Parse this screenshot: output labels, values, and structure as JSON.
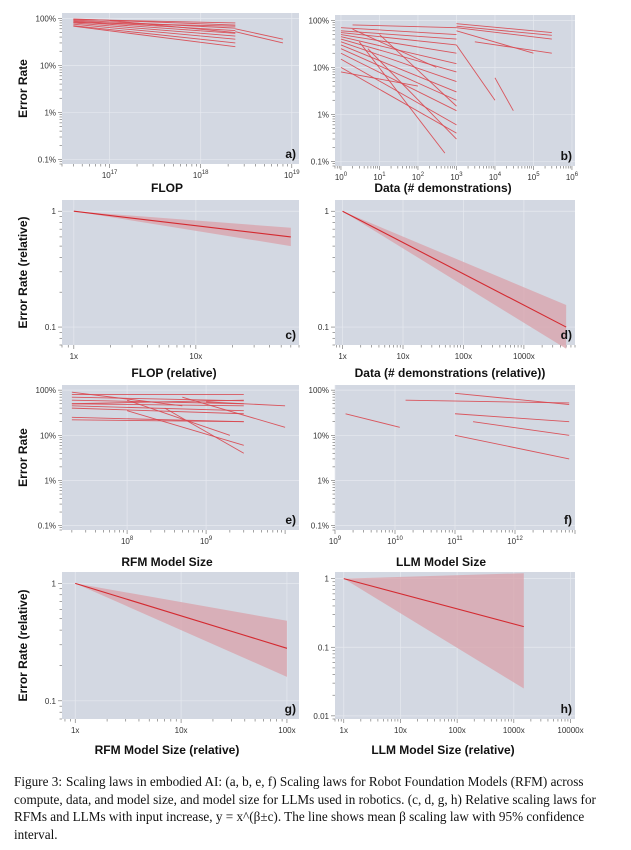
{
  "figure": {
    "caption": {
      "label": "Figure 3:",
      "text": "Scaling laws in embodied AI: (a, b, e, f) Scaling laws for Robot Foundation Models (RFM) across compute, data, and model size, and model size for LLMs used in robotics. (c, d, g, h) Relative scaling laws for RFMs and LLMs with input increase, y = x^(β±c). The line shows mean β scaling law with 95% confidence interval."
    },
    "y_axis_labels": {
      "abs": "Error Rate",
      "rel": "Error Rate (relative)"
    },
    "colors": {
      "panel_bg": "#d3d8e2",
      "line": "#d9474f",
      "band": "#d9a2aa"
    }
  },
  "chart_data": [
    {
      "id": "a",
      "type": "line",
      "panel_label": "a)",
      "xlabel": "FLOP",
      "ylabel": "Error Rate",
      "xscale": "log",
      "yscale": "log",
      "xlim": [
        3e+16,
        1.2e+19
      ],
      "ylim": [
        0.0008,
        1.3
      ],
      "xticks": [
        {
          "v": 1e+17,
          "base": "10",
          "exp": "17"
        },
        {
          "v": 1e+18,
          "base": "10",
          "exp": "18"
        },
        {
          "v": 1e+19,
          "base": "10",
          "exp": "19"
        }
      ],
      "yticks": [
        {
          "v": 1,
          "t": "100%"
        },
        {
          "v": 0.1,
          "t": "10%"
        },
        {
          "v": 0.01,
          "t": "1%"
        },
        {
          "v": 0.001,
          "t": "0.1%"
        }
      ],
      "series": [
        {
          "x": [
            4e+16,
            2.4e+18
          ],
          "y": [
            0.97,
            0.72
          ]
        },
        {
          "x": [
            4e+16,
            2.4e+18
          ],
          "y": [
            0.92,
            0.62
          ]
        },
        {
          "x": [
            4e+16,
            2.4e+18
          ],
          "y": [
            0.88,
            0.55
          ]
        },
        {
          "x": [
            4e+16,
            2.4e+18
          ],
          "y": [
            0.85,
            0.48
          ]
        },
        {
          "x": [
            4e+16,
            2.4e+18
          ],
          "y": [
            0.8,
            0.42
          ]
        },
        {
          "x": [
            4e+16,
            2.4e+18
          ],
          "y": [
            0.75,
            0.36
          ]
        },
        {
          "x": [
            4e+16,
            2.4e+18
          ],
          "y": [
            0.7,
            0.3
          ]
        },
        {
          "x": [
            4e+16,
            2.4e+18
          ],
          "y": [
            0.95,
            0.8
          ]
        },
        {
          "x": [
            4e+16,
            2.4e+18
          ],
          "y": [
            0.82,
            0.68
          ]
        },
        {
          "x": [
            4e+16,
            2.4e+18
          ],
          "y": [
            0.68,
            0.25
          ]
        },
        {
          "x": [
            2.4e+18,
            8e+18
          ],
          "y": [
            0.6,
            0.36
          ]
        },
        {
          "x": [
            2.4e+18,
            8e+18
          ],
          "y": [
            0.52,
            0.3
          ]
        },
        {
          "x": [
            1e+17,
            2.4e+18
          ],
          "y": [
            0.9,
            0.5
          ]
        }
      ]
    },
    {
      "id": "b",
      "type": "line",
      "panel_label": "b)",
      "xlabel": "Data (# demonstrations)",
      "ylabel": "",
      "xscale": "log",
      "yscale": "log",
      "xlim": [
        0.7,
        1200000.0
      ],
      "ylim": [
        0.0008,
        1.3
      ],
      "xticks": [
        {
          "v": 1,
          "base": "10",
          "exp": "0"
        },
        {
          "v": 10,
          "base": "10",
          "exp": "1"
        },
        {
          "v": 100,
          "base": "10",
          "exp": "2"
        },
        {
          "v": 1000,
          "base": "10",
          "exp": "3"
        },
        {
          "v": 10000,
          "base": "10",
          "exp": "4"
        },
        {
          "v": 100000,
          "base": "10",
          "exp": "5"
        },
        {
          "v": 1000000,
          "base": "10",
          "exp": "6"
        }
      ],
      "yticks": [
        {
          "v": 1,
          "t": "100%"
        },
        {
          "v": 0.1,
          "t": "10%"
        },
        {
          "v": 0.01,
          "t": "1%"
        },
        {
          "v": 0.001,
          "t": "0.1%"
        }
      ],
      "series": [
        {
          "x": [
            1,
            1000
          ],
          "y": [
            0.7,
            0.5
          ]
        },
        {
          "x": [
            1,
            1000
          ],
          "y": [
            0.6,
            0.4
          ]
        },
        {
          "x": [
            1,
            1000
          ],
          "y": [
            0.55,
            0.3
          ]
        },
        {
          "x": [
            1,
            1000
          ],
          "y": [
            0.5,
            0.2
          ]
        },
        {
          "x": [
            1,
            1000
          ],
          "y": [
            0.45,
            0.12
          ]
        },
        {
          "x": [
            1,
            1000
          ],
          "y": [
            0.4,
            0.08
          ]
        },
        {
          "x": [
            1,
            1000
          ],
          "y": [
            0.35,
            0.05
          ]
        },
        {
          "x": [
            1,
            1000
          ],
          "y": [
            0.3,
            0.03
          ]
        },
        {
          "x": [
            1,
            1000
          ],
          "y": [
            0.25,
            0.02
          ]
        },
        {
          "x": [
            1,
            1000
          ],
          "y": [
            0.2,
            0.012
          ]
        },
        {
          "x": [
            1,
            1000
          ],
          "y": [
            0.15,
            0.006
          ]
        },
        {
          "x": [
            1,
            1000
          ],
          "y": [
            0.1,
            0.004
          ]
        },
        {
          "x": [
            2,
            1000
          ],
          "y": [
            0.8,
            0.7
          ]
        },
        {
          "x": [
            2,
            300
          ],
          "y": [
            0.65,
            0.1
          ]
        },
        {
          "x": [
            3,
            500
          ],
          "y": [
            0.35,
            0.0015
          ]
        },
        {
          "x": [
            5,
            1000
          ],
          "y": [
            0.25,
            0.003
          ]
        },
        {
          "x": [
            10,
            1000
          ],
          "y": [
            0.5,
            0.015
          ]
        },
        {
          "x": [
            1,
            100
          ],
          "y": [
            0.08,
            0.04
          ]
        },
        {
          "x": [
            1000,
            300000
          ],
          "y": [
            0.85,
            0.55
          ]
        },
        {
          "x": [
            1000,
            300000
          ],
          "y": [
            0.75,
            0.48
          ]
        },
        {
          "x": [
            1000,
            300000
          ],
          "y": [
            0.7,
            0.4
          ]
        },
        {
          "x": [
            1000,
            100000
          ],
          "y": [
            0.6,
            0.2
          ]
        },
        {
          "x": [
            3000,
            300000
          ],
          "y": [
            0.35,
            0.2
          ]
        },
        {
          "x": [
            10000,
            30000
          ],
          "y": [
            0.06,
            0.012
          ]
        },
        {
          "x": [
            1000,
            10000
          ],
          "y": [
            0.3,
            0.02
          ]
        }
      ]
    },
    {
      "id": "c",
      "type": "line",
      "panel_label": "c)",
      "xlabel": "FLOP (relative)",
      "ylabel": "Error Rate (relative)",
      "xscale": "log",
      "yscale": "log",
      "xlim": [
        0.8,
        70
      ],
      "ylim": [
        0.07,
        1.25
      ],
      "xticks": [
        {
          "v": 1,
          "t": "1x"
        },
        {
          "v": 10,
          "t": "10x"
        }
      ],
      "yticks": [
        {
          "v": 1,
          "t": "1"
        },
        {
          "v": 0.1,
          "t": "0.1"
        }
      ],
      "mean": {
        "x": [
          1,
          60
        ],
        "y": [
          1,
          0.6
        ]
      },
      "band": {
        "x": [
          1,
          60
        ],
        "lo": [
          1,
          0.5
        ],
        "hi": [
          1,
          0.72
        ]
      }
    },
    {
      "id": "d",
      "type": "line",
      "panel_label": "d)",
      "xlabel": "Data (# demonstrations (relative))",
      "ylabel": "",
      "xscale": "log",
      "yscale": "log",
      "xlim": [
        0.75,
        7000
      ],
      "ylim": [
        0.07,
        1.25
      ],
      "xticks": [
        {
          "v": 1,
          "t": "1x"
        },
        {
          "v": 10,
          "t": "10x"
        },
        {
          "v": 100,
          "t": "100x"
        },
        {
          "v": 1000,
          "t": "1000x"
        }
      ],
      "yticks": [
        {
          "v": 1,
          "t": "1"
        },
        {
          "v": 0.1,
          "t": "0.1"
        }
      ],
      "mean": {
        "x": [
          1,
          5000
        ],
        "y": [
          1,
          0.1
        ]
      },
      "band": {
        "x": [
          1,
          5000
        ],
        "lo": [
          1,
          0.065
        ],
        "hi": [
          1,
          0.155
        ]
      }
    },
    {
      "id": "e",
      "type": "line",
      "panel_label": "e)",
      "xlabel": "RFM Model Size",
      "ylabel": "Error Rate",
      "xscale": "log",
      "yscale": "log",
      "xlim": [
        15000000.0,
        15000000000.0
      ],
      "ylim": [
        0.0008,
        1.3
      ],
      "xticks": [
        {
          "v": 100000000.0,
          "base": "10",
          "exp": "8"
        },
        {
          "v": 1000000000.0,
          "base": "10",
          "exp": "9"
        }
      ],
      "yticks": [
        {
          "v": 1,
          "t": "100%"
        },
        {
          "v": 0.1,
          "t": "10%"
        },
        {
          "v": 0.01,
          "t": "1%"
        },
        {
          "v": 0.001,
          "t": "0.1%"
        }
      ],
      "series": [
        {
          "x": [
            20000000.0,
            3000000000.0
          ],
          "y": [
            0.8,
            0.8
          ]
        },
        {
          "x": [
            20000000.0,
            3000000000.0
          ],
          "y": [
            0.7,
            0.58
          ]
        },
        {
          "x": [
            20000000.0,
            3000000000.0
          ],
          "y": [
            0.6,
            0.5
          ]
        },
        {
          "x": [
            20000000.0,
            3000000000.0
          ],
          "y": [
            0.5,
            0.45
          ]
        },
        {
          "x": [
            20000000.0,
            3000000000.0
          ],
          "y": [
            0.45,
            0.35
          ]
        },
        {
          "x": [
            20000000.0,
            3000000000.0
          ],
          "y": [
            0.4,
            0.3
          ]
        },
        {
          "x": [
            20000000.0,
            3000000000.0
          ],
          "y": [
            0.25,
            0.2
          ]
        },
        {
          "x": [
            20000000.0,
            3000000000.0
          ],
          "y": [
            0.22,
            0.2
          ]
        },
        {
          "x": [
            20000000.0,
            3000000000.0
          ],
          "y": [
            0.5,
            0.6
          ]
        },
        {
          "x": [
            100000000.0,
            3000000000.0
          ],
          "y": [
            0.35,
            0.06
          ]
        },
        {
          "x": [
            300000000.0,
            3000000000.0
          ],
          "y": [
            0.4,
            0.04
          ]
        },
        {
          "x": [
            500000000.0,
            10000000000.0
          ],
          "y": [
            0.7,
            0.15
          ]
        },
        {
          "x": [
            1000000000.0,
            10000000000.0
          ],
          "y": [
            0.55,
            0.45
          ]
        },
        {
          "x": [
            100000000.0,
            2000000000.0
          ],
          "y": [
            0.6,
            0.1
          ]
        },
        {
          "x": [
            20000000.0,
            500000000.0
          ],
          "y": [
            0.9,
            0.45
          ]
        }
      ]
    },
    {
      "id": "f",
      "type": "line",
      "panel_label": "f)",
      "xlabel": "LLM Model Size",
      "ylabel": "",
      "xscale": "log",
      "yscale": "log",
      "xlim": [
        1000000000.0,
        10000000000000.0
      ],
      "ylim": [
        0.0008,
        1.3
      ],
      "xticks": [
        {
          "v": 1000000000.0,
          "base": "10",
          "exp": "9"
        },
        {
          "v": 10000000000.0,
          "base": "10",
          "exp": "10"
        },
        {
          "v": 100000000000.0,
          "base": "10",
          "exp": "11"
        },
        {
          "v": 1000000000000.0,
          "base": "10",
          "exp": "12"
        }
      ],
      "yticks": [
        {
          "v": 1,
          "t": "100%"
        },
        {
          "v": 0.1,
          "t": "10%"
        },
        {
          "v": 0.01,
          "t": "1%"
        },
        {
          "v": 0.001,
          "t": "0.1%"
        }
      ],
      "series": [
        {
          "x": [
            15000000000.0,
            8000000000000.0
          ],
          "y": [
            0.6,
            0.52
          ]
        },
        {
          "x": [
            100000000000.0,
            8000000000000.0
          ],
          "y": [
            0.85,
            0.48
          ]
        },
        {
          "x": [
            100000000000.0,
            8000000000000.0
          ],
          "y": [
            0.3,
            0.2
          ]
        },
        {
          "x": [
            200000000000.0,
            8000000000000.0
          ],
          "y": [
            0.2,
            0.1
          ]
        },
        {
          "x": [
            100000000000.0,
            8000000000000.0
          ],
          "y": [
            0.1,
            0.03
          ]
        },
        {
          "x": [
            1500000000.0,
            12000000000.0
          ],
          "y": [
            0.3,
            0.15
          ]
        }
      ]
    },
    {
      "id": "g",
      "type": "line",
      "panel_label": "g)",
      "xlabel": "RFM Model Size (relative)",
      "ylabel": "Error Rate (relative)",
      "xscale": "log",
      "yscale": "log",
      "xlim": [
        0.75,
        130
      ],
      "ylim": [
        0.07,
        1.25
      ],
      "xticks": [
        {
          "v": 1,
          "t": "1x"
        },
        {
          "v": 10,
          "t": "10x"
        },
        {
          "v": 100,
          "t": "100x"
        }
      ],
      "yticks": [
        {
          "v": 1,
          "t": "1"
        },
        {
          "v": 0.1,
          "t": "0.1"
        }
      ],
      "mean": {
        "x": [
          1,
          100
        ],
        "y": [
          1,
          0.28
        ]
      },
      "band": {
        "x": [
          1,
          100
        ],
        "lo": [
          1,
          0.16
        ],
        "hi": [
          1,
          0.48
        ]
      }
    },
    {
      "id": "h",
      "type": "line",
      "panel_label": "h)",
      "xlabel": "LLM Model Size (relative)",
      "ylabel": "",
      "xscale": "log",
      "yscale": "log",
      "xlim": [
        0.7,
        12000
      ],
      "ylim": [
        0.009,
        1.25
      ],
      "xticks": [
        {
          "v": 1,
          "t": "1x"
        },
        {
          "v": 10,
          "t": "10x"
        },
        {
          "v": 100,
          "t": "100x"
        },
        {
          "v": 1000,
          "t": "1000x"
        },
        {
          "v": 10000,
          "t": "10000x"
        }
      ],
      "yticks": [
        {
          "v": 1,
          "t": "1"
        },
        {
          "v": 0.1,
          "t": "0.1"
        },
        {
          "v": 0.01,
          "t": "0.01"
        }
      ],
      "mean": {
        "x": [
          1,
          1500
        ],
        "y": [
          1,
          0.2
        ]
      },
      "band": {
        "x": [
          1,
          1500
        ],
        "lo": [
          1,
          0.025
        ],
        "hi": [
          1,
          1.2
        ]
      }
    }
  ]
}
